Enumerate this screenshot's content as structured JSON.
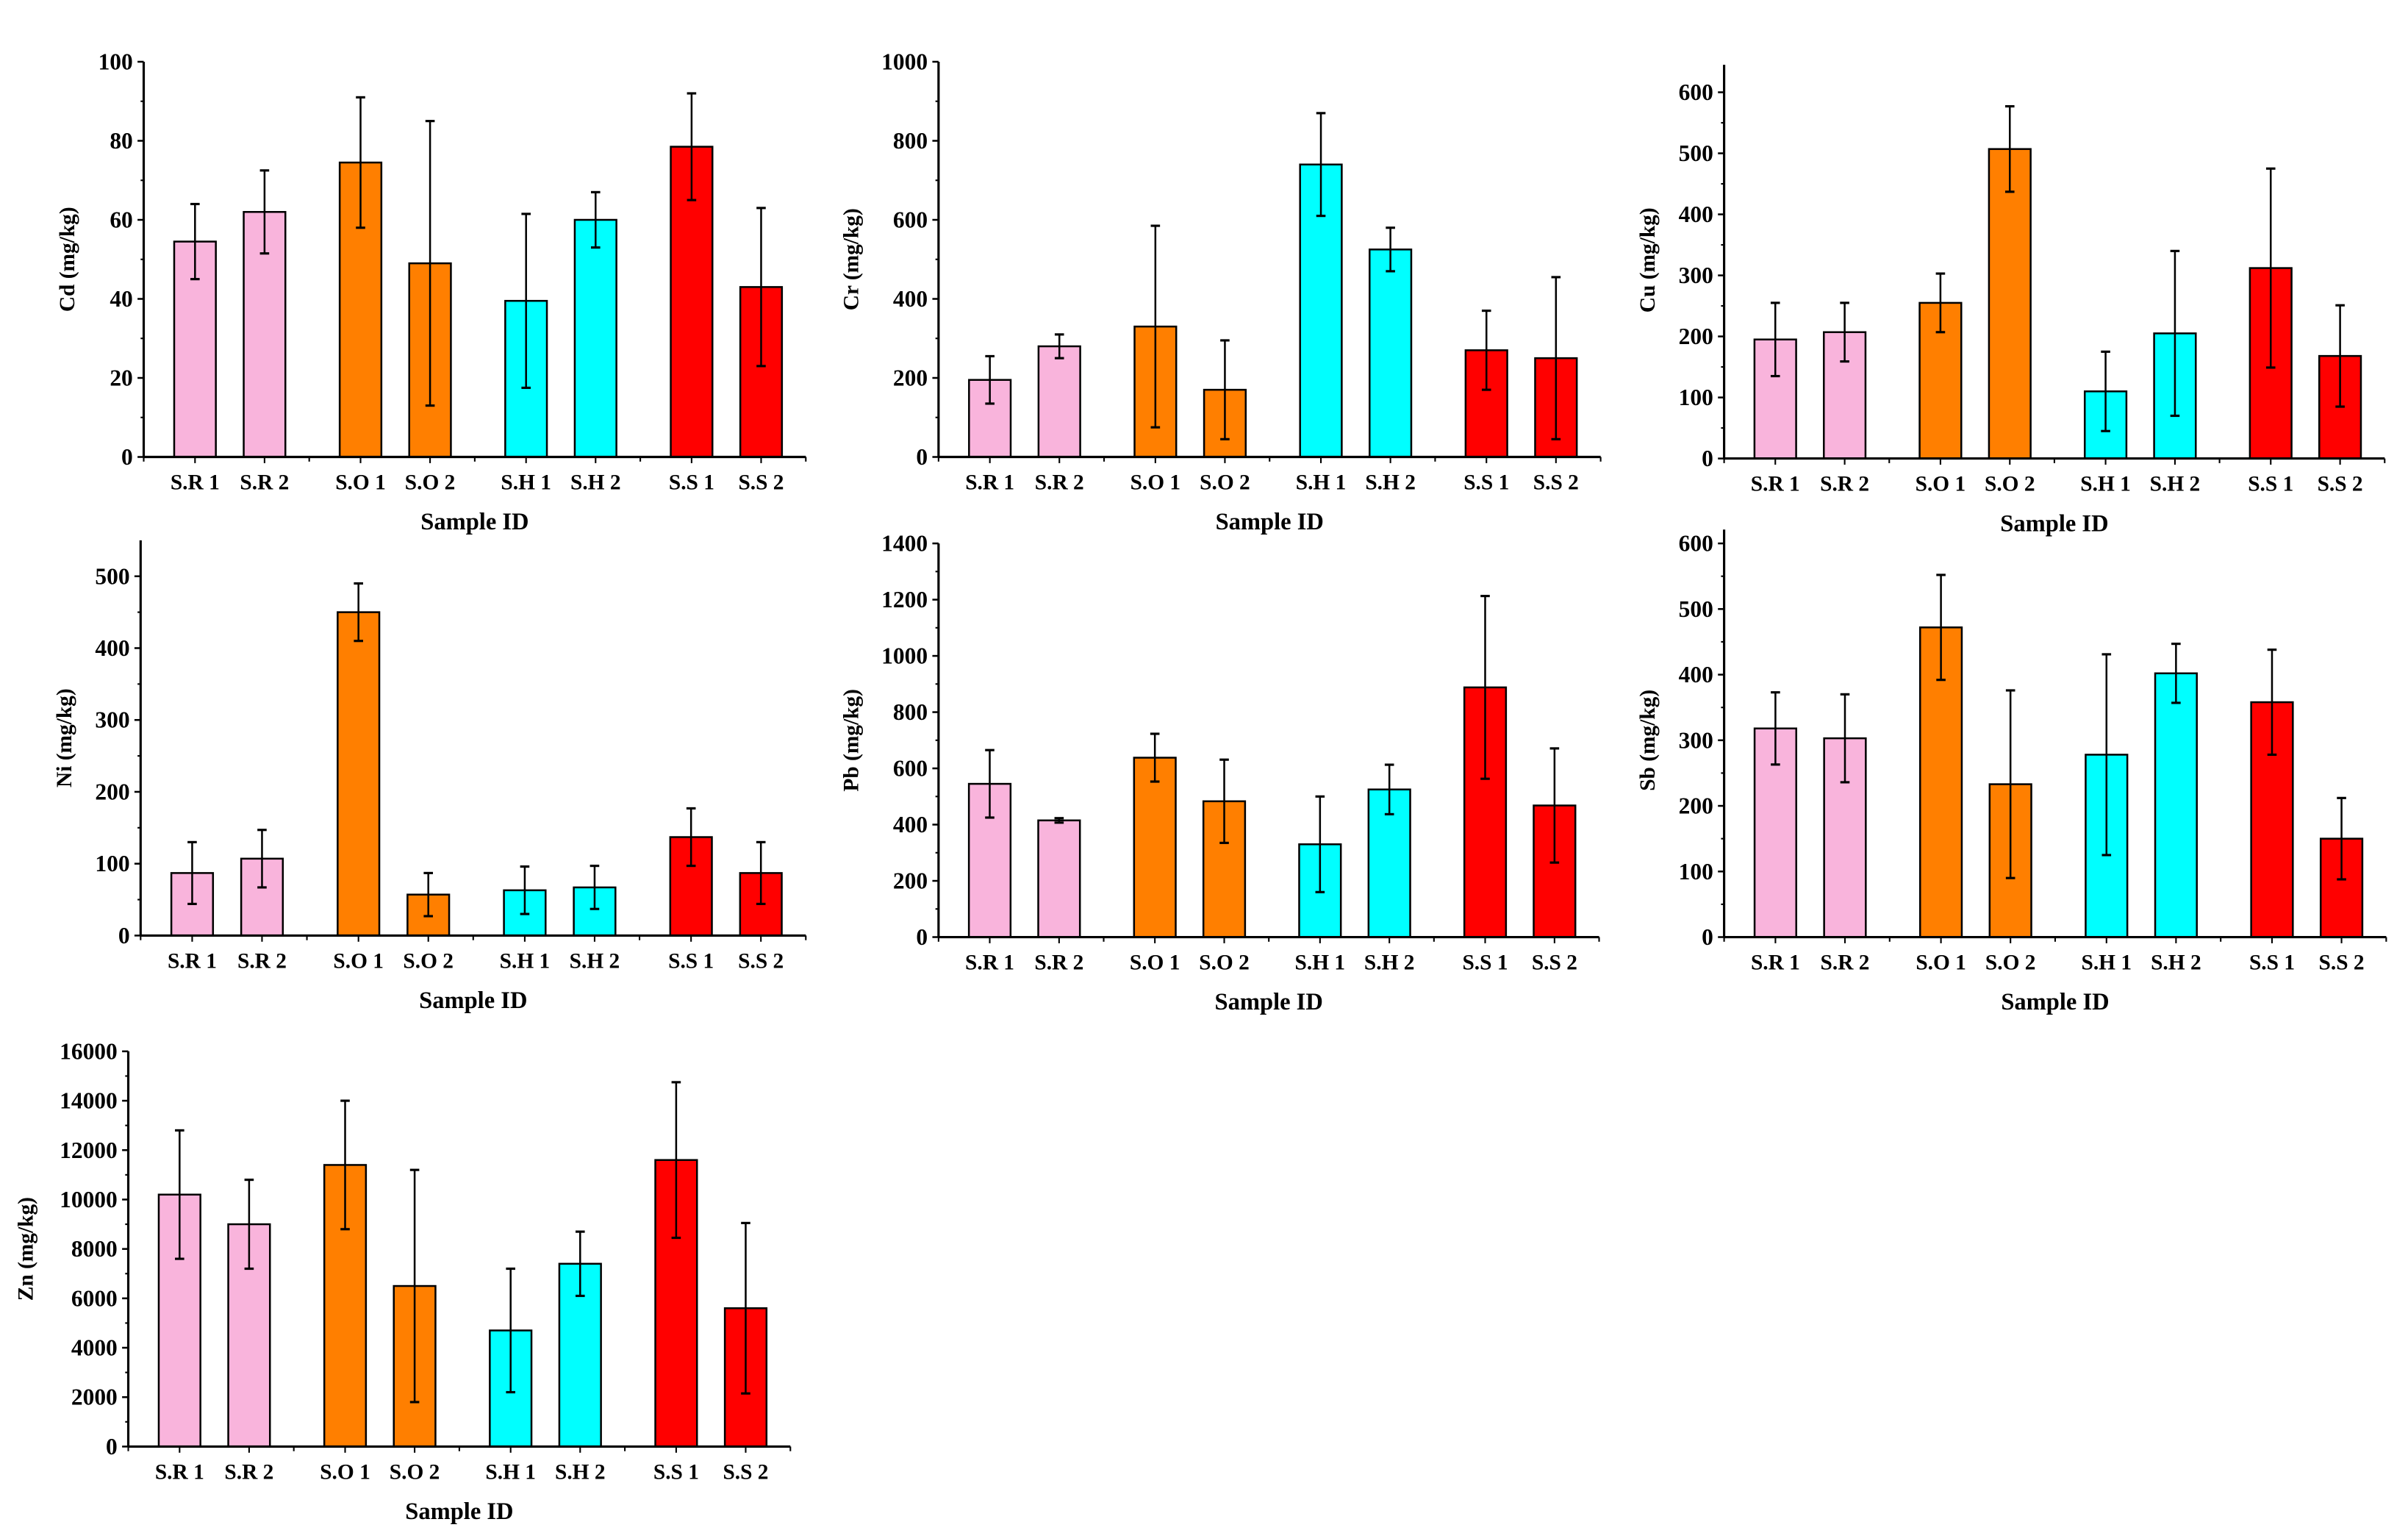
{
  "colors": {
    "S.R": "#f9b4dc",
    "S.O": "#ff7f00",
    "S.H": "#00ffff",
    "S.S": "#ff0000"
  },
  "chart_data": [
    {
      "type": "bar",
      "title": "",
      "xlabel": "Sample ID",
      "ylabel": "Cd (mg/kg)",
      "categories": [
        "S.R 1",
        "S.R 2",
        "S.O 1",
        "S.O 2",
        "S.H 1",
        "S.H 2",
        "S.S 1",
        "S.S 2"
      ],
      "values": [
        54.5,
        62,
        74.5,
        49,
        39.5,
        60,
        78.5,
        43
      ],
      "errors": [
        9.5,
        10.5,
        16.5,
        36,
        22,
        7,
        13.5,
        20
      ],
      "ylim": [
        0,
        100
      ],
      "yticks": [
        0,
        20,
        40,
        60,
        80,
        100
      ],
      "grid": false
    },
    {
      "type": "bar",
      "title": "",
      "xlabel": "Sample ID",
      "ylabel": "Cr (mg/kg)",
      "categories": [
        "S.R 1",
        "S.R 2",
        "S.O 1",
        "S.O 2",
        "S.H 1",
        "S.H 2",
        "S.S 1",
        "S.S 2"
      ],
      "values": [
        195,
        280,
        330,
        170,
        740,
        525,
        270,
        250
      ],
      "errors": [
        60,
        30,
        255,
        125,
        130,
        55,
        100,
        205
      ],
      "ylim": [
        0,
        1000
      ],
      "yticks": [
        0,
        200,
        400,
        600,
        800,
        1000
      ],
      "grid": false
    },
    {
      "type": "bar",
      "title": "",
      "xlabel": "Sample ID",
      "ylabel": "Cu (mg/kg)",
      "categories": [
        "S.R 1",
        "S.R 2",
        "S.O 1",
        "S.O 2",
        "S.H 1",
        "S.H 2",
        "S.S 1",
        "S.S 2"
      ],
      "values": [
        195,
        207,
        255,
        507,
        110,
        205,
        312,
        168
      ],
      "errors": [
        60,
        48,
        48,
        70,
        65,
        135,
        163,
        83
      ],
      "ylim": [
        0,
        650
      ],
      "yticks": [
        0,
        100,
        200,
        300,
        400,
        500,
        600
      ],
      "grid": false
    },
    {
      "type": "bar",
      "title": "",
      "xlabel": "Sample ID",
      "ylabel": "Ni (mg/kg)",
      "categories": [
        "S.R 1",
        "S.R 2",
        "S.O 1",
        "S.O 2",
        "S.H 1",
        "S.H 2",
        "S.S 1",
        "S.S 2"
      ],
      "values": [
        87,
        107,
        450,
        57,
        63,
        67,
        137,
        87
      ],
      "errors": [
        43,
        40,
        40,
        30,
        33,
        30,
        40,
        43
      ],
      "ylim": [
        0,
        550
      ],
      "yticks": [
        0,
        100,
        200,
        300,
        400,
        500
      ],
      "grid": false
    },
    {
      "type": "bar",
      "title": "",
      "xlabel": "Sample ID",
      "ylabel": "Pb (mg/kg)",
      "categories": [
        "S.R 1",
        "S.R 2",
        "S.O 1",
        "S.O 2",
        "S.H 1",
        "S.H 2",
        "S.S 1",
        "S.S 2"
      ],
      "values": [
        545,
        415,
        638,
        483,
        330,
        525,
        888,
        468
      ],
      "errors": [
        120,
        8,
        85,
        148,
        170,
        88,
        325,
        203
      ],
      "ylim": [
        0,
        1400
      ],
      "yticks": [
        0,
        200,
        400,
        600,
        800,
        1000,
        1200,
        1400
      ],
      "grid": false
    },
    {
      "type": "bar",
      "title": "",
      "xlabel": "Sample ID",
      "ylabel": "Sb (mg/kg)",
      "categories": [
        "S.R 1",
        "S.R 2",
        "S.O 1",
        "S.O 2",
        "S.H 1",
        "S.H 2",
        "S.S 1",
        "S.S 2"
      ],
      "values": [
        318,
        303,
        472,
        233,
        278,
        402,
        358,
        150
      ],
      "errors": [
        55,
        67,
        80,
        143,
        153,
        45,
        80,
        62
      ],
      "ylim": [
        0,
        600
      ],
      "yticks": [
        0,
        100,
        200,
        300,
        400,
        500,
        600
      ],
      "grid": false
    },
    {
      "type": "bar",
      "title": "",
      "xlabel": "Sample ID",
      "ylabel": "Zn (mg/kg)",
      "categories": [
        "S.R 1",
        "S.R 2",
        "S.O 1",
        "S.O 2",
        "S.H 1",
        "S.H 2",
        "S.S 1",
        "S.S 2"
      ],
      "values": [
        10200,
        9000,
        11400,
        6500,
        4700,
        7400,
        11600,
        5600
      ],
      "errors": [
        2600,
        1800,
        2600,
        4700,
        2500,
        1300,
        3150,
        3450
      ],
      "ylim": [
        0,
        16000
      ],
      "yticks": [
        0,
        2000,
        4000,
        6000,
        8000,
        10000,
        12000,
        14000,
        16000
      ],
      "grid": false
    }
  ]
}
